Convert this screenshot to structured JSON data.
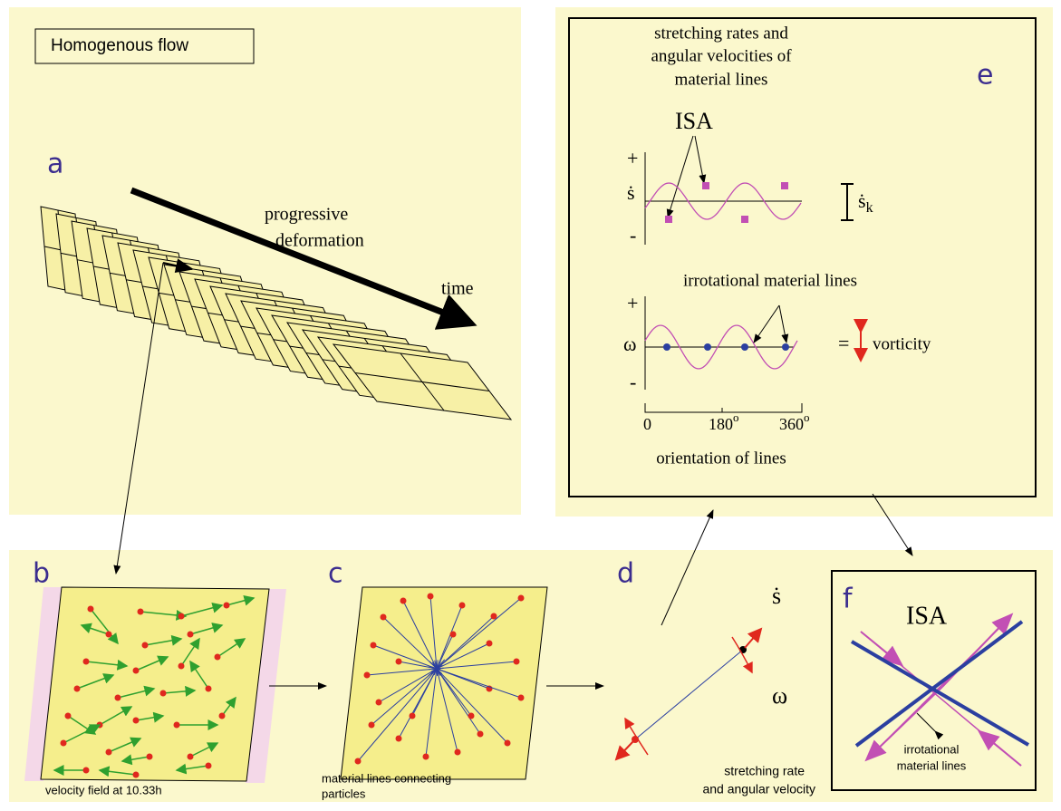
{
  "panel_a": {
    "title": "Homogenous flow",
    "letter": "a",
    "progressive": "progressive",
    "deformation": "deformation",
    "time": "time"
  },
  "panel_b": {
    "letter": "b",
    "caption": "velocity field at 10.33h"
  },
  "panel_c": {
    "letter": "c",
    "caption": [
      "material lines connecting",
      "particles"
    ]
  },
  "panel_d": {
    "letter": "d",
    "s_dot": "ṡ",
    "omega": "ω",
    "caption": [
      "stretching rate",
      "and angular velocity"
    ]
  },
  "panel_e": {
    "letter": "e",
    "heading": [
      "stretching rates and",
      "angular velocities of",
      "material lines"
    ],
    "isa": "ISA",
    "plus_1": "+",
    "s_dot": "ṡ",
    "minus_1": "-",
    "sk_symbol": "ṡ",
    "sk_subscript": "k",
    "irrotational": "irrotational material lines",
    "plus_2": "+",
    "omega": "ω",
    "minus_2": "-",
    "equals": "=",
    "vorticity": "vorticity",
    "tick_0": "0",
    "tick_180": "180",
    "tick_360": "360",
    "degree": "o",
    "axis_label": "orientation of lines"
  },
  "panel_f": {
    "letter": "f",
    "isa": "ISA",
    "caption": [
      "irrotational",
      "material lines"
    ]
  }
}
